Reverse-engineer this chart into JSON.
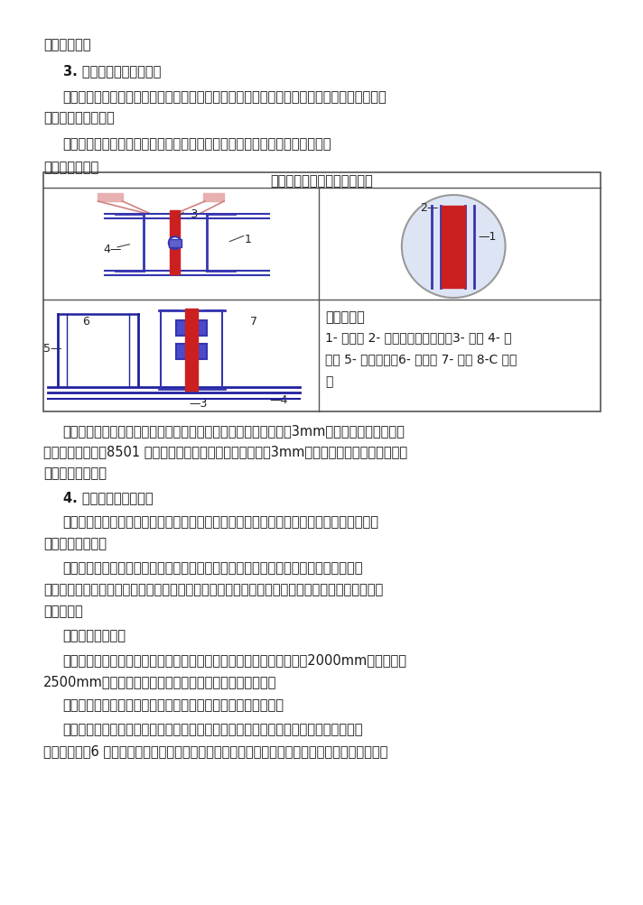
{
  "bg_color": "#ffffff",
  "text_color": "#1a1a1a",
  "line1": "法兰口平直。",
  "section3_title": "3. 角钔法兰风管连接要求",
  "para1": "连接角钔法兰的螺栖应均匀拧紧，　　其螺母宜在同一侧。不锈钔风管法兰连接，　宜采用同",
  "para1b": "材质的不锈钔螺栖。",
  "para2": "安装在室外或潮湿环境的风管角钔法兰连接处，应采用镀锌螺栖和镀锌垫圈。",
  "para3": "风管法兰连接图",
  "diagram_title": "矩形风管管段法兰连接示意图",
  "legend1": "符号说明：",
  "legend2": "1- 密封胶 2- 薄钔板法兰角卡　　3- 垫料 4- 风",
  "legend3": "　管 5- 角钔法兰　6- 螺母子 7- 螺栖 8-C 形插",
  "legend4": "条",
  "para4": "风管法兰的垫料材质应符合系统功能的要求，厕度不应小于　　　3mm。通风、空调风管法兰",
  "para4b": "间连接采用闭孔　8501 胶带，消防排烟风管法兰连接采用　3mm厕石棉橡胶垃密封，此外法兰",
  "para4c": "垫料应减少拼接。",
  "section4_title": "4. 支、吷架的制作安装",
  "para5": "支、吷架的设置形式、间距、以及所采用的材质，　　需根据风管所安装的具体位置及风管",
  "para5b": "的管径大小确定。",
  "para6": "设置前应对每个系统的支吷架进行整体规划。同时还要兼顾其它专业的管线布置情况，",
  "para6b": "以确定是否采用共用支架或组合式支架，　　以及避免管线发生冲突，　保证机电专业整体施工的",
  "para6c": "顺利进行。",
  "subsection_title": "支、吷架制作要求",
  "para7": "风管支架、吷架的形式和规格参照标准图集与规范选用，直径大于　　2000mm或边长大于",
  "para7b": "2500mm的超宽、超重特殊风管的支、吷架应按设计规定。",
  "para8": "支、吷架的下料宜采用机械加工，不得采用电气焊开孔或扩孔。",
  "para9": "吷杆应平直，螺纹应完整、光洁。吷杆加长时，采用搞接双侧连续焊，搞接长度不应小",
  "para9b": "于吷杆直径的6 倍；采用螺纹连接时，　拧入连接螺母的螺丝长应大于吷杆直径，　　并有防松动"
}
